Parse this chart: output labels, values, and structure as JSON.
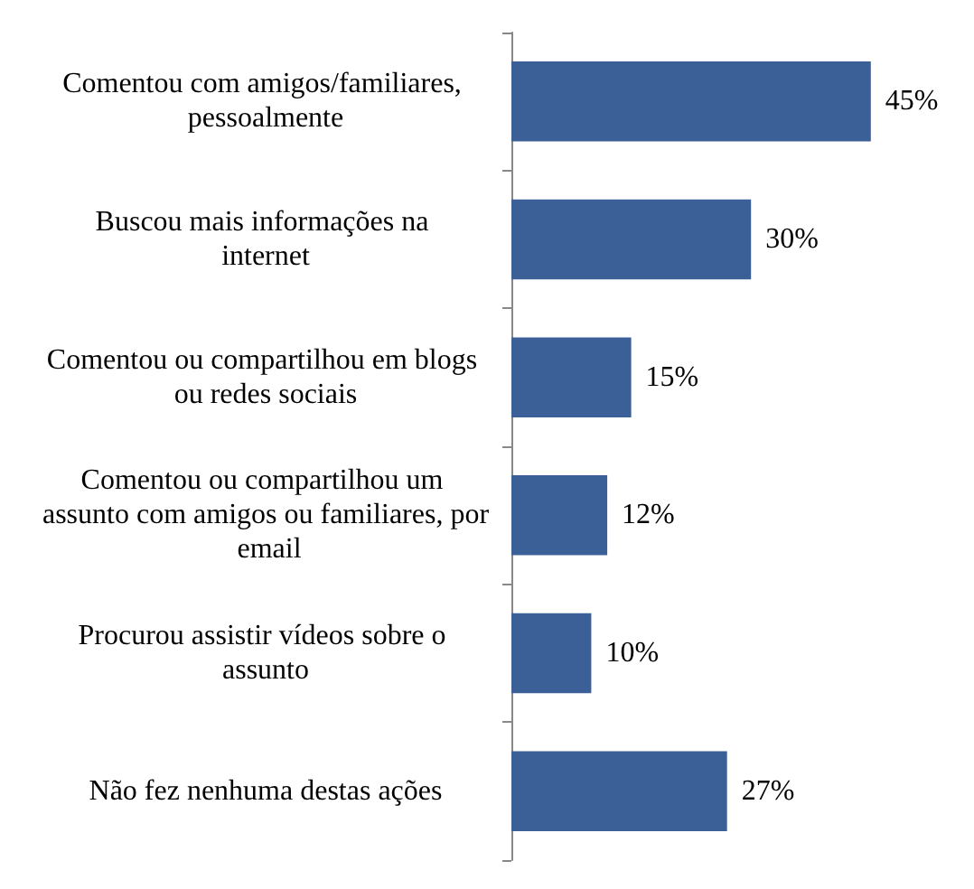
{
  "chart_data": {
    "type": "bar",
    "orientation": "horizontal",
    "categories": [
      "Comentou com amigos/familiares, pessoalmente",
      "Buscou mais informações na internet",
      "Comentou ou compartilhou em blogs ou redes sociais",
      "Comentou ou compartilhou um assunto com amigos ou familiares, por email",
      "Procurou assistir vídeos sobre o assunto",
      "Não fez nenhuma destas ações"
    ],
    "values": [
      45,
      30,
      15,
      12,
      10,
      27
    ],
    "value_labels": [
      "45%",
      "30%",
      "15%",
      "12%",
      "10%",
      "27%"
    ],
    "color": "#3b5f97"
  }
}
